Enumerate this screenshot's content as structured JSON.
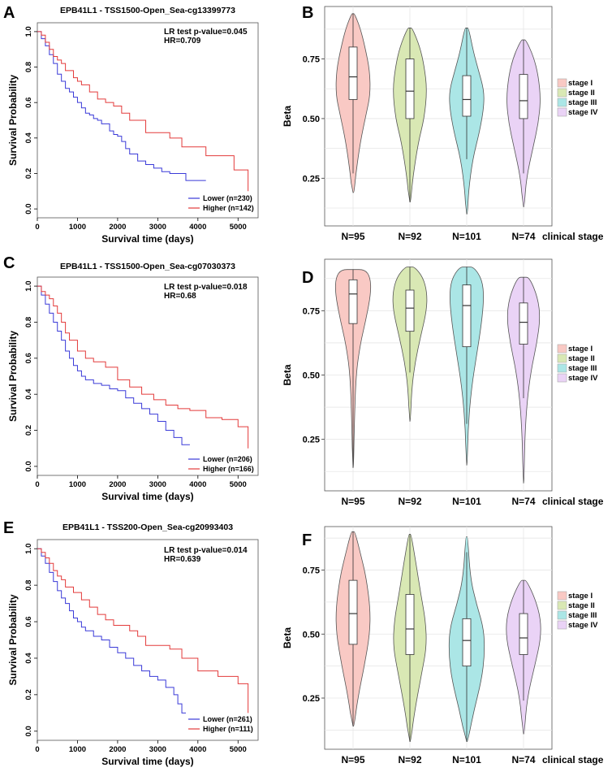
{
  "colors": {
    "lower": "#3a3ad8",
    "higher": "#e33b3b",
    "stage_fills": [
      "#f9c9c4",
      "#d9e8b4",
      "#abe6e6",
      "#ead3f6"
    ],
    "stage_strokes": [
      "#555555",
      "#555555",
      "#555555",
      "#555555"
    ],
    "grid": "#e6e6e6",
    "frame": "#555555"
  },
  "chart_data": [
    {
      "panel": "A",
      "type": "line",
      "title": "EPB41L1 - TSS1500-Open_Sea-cg13399773",
      "xlabel": "Survival time (days)",
      "ylabel": "Survival Probability",
      "xlim": [
        0,
        5500
      ],
      "ylim": [
        -0.05,
        1.05
      ],
      "xticks": [
        0,
        1000,
        2000,
        3000,
        4000,
        5000
      ],
      "yticks": [
        0.0,
        0.2,
        0.4,
        0.6,
        0.8,
        1.0
      ],
      "pvalue_text": "LR test p-value=0.045",
      "hr_text": "HR=0.709",
      "series": [
        {
          "name": "Lower (n=230)",
          "key": "lower",
          "x": [
            0,
            100,
            200,
            300,
            400,
            500,
            600,
            700,
            800,
            900,
            1000,
            1100,
            1200,
            1300,
            1400,
            1500,
            1600,
            1700,
            1800,
            1900,
            2000,
            2100,
            2200,
            2300,
            2500,
            2700,
            2900,
            3100,
            3300,
            3500,
            3700,
            4000,
            4200
          ],
          "y": [
            1.0,
            0.96,
            0.92,
            0.87,
            0.82,
            0.76,
            0.72,
            0.68,
            0.66,
            0.63,
            0.6,
            0.57,
            0.54,
            0.53,
            0.51,
            0.5,
            0.48,
            0.48,
            0.44,
            0.42,
            0.41,
            0.38,
            0.34,
            0.31,
            0.27,
            0.25,
            0.23,
            0.21,
            0.2,
            0.2,
            0.16,
            0.16,
            0.16
          ]
        },
        {
          "name": "Higher (n=142)",
          "key": "higher",
          "x": [
            0,
            100,
            200,
            300,
            400,
            500,
            600,
            700,
            900,
            1000,
            1100,
            1300,
            1500,
            1700,
            1900,
            2100,
            2300,
            2500,
            2700,
            3000,
            3300,
            3600,
            3900,
            4200,
            4600,
            4900,
            5200,
            5250
          ],
          "y": [
            1.0,
            0.98,
            0.94,
            0.9,
            0.86,
            0.84,
            0.82,
            0.78,
            0.74,
            0.72,
            0.7,
            0.66,
            0.62,
            0.6,
            0.58,
            0.54,
            0.5,
            0.5,
            0.43,
            0.43,
            0.4,
            0.35,
            0.35,
            0.3,
            0.3,
            0.22,
            0.22,
            0.1
          ]
        }
      ]
    },
    {
      "panel": "C",
      "type": "line",
      "title": "EPB41L1 - TSS1500-Open_Sea-cg07030373",
      "xlabel": "Survival time (days)",
      "ylabel": "Survival Probability",
      "xlim": [
        0,
        5500
      ],
      "ylim": [
        -0.05,
        1.05
      ],
      "xticks": [
        0,
        1000,
        2000,
        3000,
        4000,
        5000
      ],
      "yticks": [
        0.0,
        0.2,
        0.4,
        0.6,
        0.8,
        1.0
      ],
      "pvalue_text": "LR test p-value=0.018",
      "hr_text": "HR=0.68",
      "series": [
        {
          "name": "Lower (n=206)",
          "key": "lower",
          "x": [
            0,
            100,
            200,
            300,
            400,
            500,
            600,
            700,
            800,
            900,
            1000,
            1100,
            1200,
            1400,
            1600,
            1800,
            2000,
            2200,
            2400,
            2600,
            2800,
            3000,
            3200,
            3400,
            3600,
            3800
          ],
          "y": [
            1.0,
            0.95,
            0.9,
            0.85,
            0.8,
            0.75,
            0.7,
            0.64,
            0.6,
            0.56,
            0.53,
            0.5,
            0.48,
            0.46,
            0.45,
            0.43,
            0.42,
            0.38,
            0.35,
            0.32,
            0.29,
            0.25,
            0.2,
            0.16,
            0.12,
            0.12
          ]
        },
        {
          "name": "Higher (n=166)",
          "key": "higher",
          "x": [
            0,
            100,
            200,
            300,
            400,
            500,
            600,
            700,
            800,
            1000,
            1200,
            1400,
            1700,
            2000,
            2300,
            2600,
            2900,
            3200,
            3500,
            3800,
            4200,
            4600,
            5000,
            5200,
            5250
          ],
          "y": [
            1.0,
            0.97,
            0.95,
            0.93,
            0.89,
            0.85,
            0.8,
            0.74,
            0.7,
            0.64,
            0.6,
            0.58,
            0.55,
            0.48,
            0.44,
            0.4,
            0.37,
            0.34,
            0.32,
            0.31,
            0.27,
            0.26,
            0.22,
            0.22,
            0.1
          ]
        }
      ]
    },
    {
      "panel": "E",
      "type": "line",
      "title": "EPB41L1 - TSS200-Open_Sea-cg20993403",
      "xlabel": "Survival time (days)",
      "ylabel": "Survival Probability",
      "xlim": [
        0,
        5500
      ],
      "ylim": [
        -0.05,
        1.05
      ],
      "xticks": [
        0,
        1000,
        2000,
        3000,
        4000,
        5000
      ],
      "yticks": [
        0.0,
        0.2,
        0.4,
        0.6,
        0.8,
        1.0
      ],
      "pvalue_text": "LR test p-value=0.014",
      "hr_text": "HR=0.639",
      "series": [
        {
          "name": "Lower (n=261)",
          "key": "lower",
          "x": [
            0,
            100,
            200,
            300,
            400,
            500,
            600,
            700,
            800,
            900,
            1000,
            1100,
            1200,
            1400,
            1600,
            1800,
            2000,
            2200,
            2400,
            2600,
            2800,
            3000,
            3200,
            3400,
            3500,
            3600,
            3700
          ],
          "y": [
            1.0,
            0.96,
            0.92,
            0.87,
            0.82,
            0.77,
            0.73,
            0.7,
            0.66,
            0.62,
            0.6,
            0.57,
            0.55,
            0.52,
            0.5,
            0.46,
            0.43,
            0.4,
            0.36,
            0.33,
            0.3,
            0.28,
            0.24,
            0.2,
            0.15,
            0.1,
            0.1
          ]
        },
        {
          "name": "Higher (n=111)",
          "key": "higher",
          "x": [
            0,
            100,
            200,
            300,
            400,
            500,
            600,
            700,
            900,
            1100,
            1300,
            1500,
            1700,
            1900,
            2100,
            2300,
            2500,
            2700,
            3000,
            3300,
            3600,
            4000,
            4500,
            5000,
            5250
          ],
          "y": [
            1.0,
            0.98,
            0.95,
            0.92,
            0.88,
            0.85,
            0.83,
            0.79,
            0.76,
            0.72,
            0.68,
            0.64,
            0.61,
            0.58,
            0.58,
            0.55,
            0.52,
            0.47,
            0.47,
            0.45,
            0.4,
            0.33,
            0.3,
            0.26,
            0.1
          ]
        }
      ]
    },
    {
      "panel": "B",
      "type": "violin",
      "ylabel": "Beta",
      "ylim": [
        0.05,
        0.97
      ],
      "yticks": [
        0.25,
        0.5,
        0.75
      ],
      "categories": [
        "N=95",
        "N=92",
        "N=101",
        "N=74"
      ],
      "xlabel": "clinical stage",
      "legend": [
        "stage I",
        "stage II",
        "stage III",
        "stage IV"
      ],
      "groups": [
        {
          "min": 0.19,
          "max": 0.94,
          "q1": 0.58,
          "median": 0.675,
          "q3": 0.8,
          "wlo": 0.27,
          "whi": 0.94,
          "width": 0.42,
          "profile": [
            [
              0.19,
              0.04
            ],
            [
              0.27,
              0.12
            ],
            [
              0.4,
              0.3
            ],
            [
              0.52,
              0.55
            ],
            [
              0.6,
              0.72
            ],
            [
              0.7,
              0.7
            ],
            [
              0.8,
              0.5
            ],
            [
              0.88,
              0.3
            ],
            [
              0.94,
              0.06
            ]
          ]
        },
        {
          "min": 0.15,
          "max": 0.88,
          "q1": 0.5,
          "median": 0.615,
          "q3": 0.75,
          "wlo": 0.15,
          "whi": 0.88,
          "width": 0.42,
          "profile": [
            [
              0.15,
              0.03
            ],
            [
              0.25,
              0.12
            ],
            [
              0.4,
              0.35
            ],
            [
              0.5,
              0.6
            ],
            [
              0.62,
              0.72
            ],
            [
              0.72,
              0.6
            ],
            [
              0.8,
              0.42
            ],
            [
              0.88,
              0.1
            ]
          ]
        },
        {
          "min": 0.1,
          "max": 0.88,
          "q1": 0.51,
          "median": 0.58,
          "q3": 0.68,
          "wlo": 0.33,
          "whi": 0.88,
          "width": 0.42,
          "profile": [
            [
              0.1,
              0.03
            ],
            [
              0.2,
              0.08
            ],
            [
              0.33,
              0.25
            ],
            [
              0.45,
              0.55
            ],
            [
              0.55,
              0.72
            ],
            [
              0.62,
              0.72
            ],
            [
              0.7,
              0.5
            ],
            [
              0.78,
              0.28
            ],
            [
              0.88,
              0.08
            ]
          ]
        },
        {
          "min": 0.13,
          "max": 0.83,
          "q1": 0.5,
          "median": 0.575,
          "q3": 0.685,
          "wlo": 0.27,
          "whi": 0.83,
          "width": 0.42,
          "profile": [
            [
              0.13,
              0.03
            ],
            [
              0.25,
              0.12
            ],
            [
              0.38,
              0.4
            ],
            [
              0.48,
              0.62
            ],
            [
              0.58,
              0.72
            ],
            [
              0.68,
              0.62
            ],
            [
              0.76,
              0.42
            ],
            [
              0.83,
              0.1
            ]
          ]
        }
      ]
    },
    {
      "panel": "D",
      "type": "violin",
      "ylabel": "Beta",
      "ylim": [
        0.05,
        0.95
      ],
      "yticks": [
        0.25,
        0.5,
        0.75
      ],
      "categories": [
        "N=95",
        "N=92",
        "N=101",
        "N=74"
      ],
      "xlabel": "clinical stage",
      "legend": [
        "stage I",
        "stage II",
        "stage III",
        "stage IV"
      ],
      "groups": [
        {
          "min": 0.14,
          "max": 0.91,
          "q1": 0.7,
          "median": 0.815,
          "q3": 0.87,
          "wlo": 0.14,
          "whi": 0.91,
          "width": 0.42,
          "profile": [
            [
              0.14,
              0.02
            ],
            [
              0.3,
              0.05
            ],
            [
              0.5,
              0.12
            ],
            [
              0.62,
              0.3
            ],
            [
              0.72,
              0.55
            ],
            [
              0.82,
              0.75
            ],
            [
              0.88,
              0.72
            ],
            [
              0.91,
              0.5
            ]
          ]
        },
        {
          "min": 0.32,
          "max": 0.92,
          "q1": 0.67,
          "median": 0.76,
          "q3": 0.83,
          "wlo": 0.51,
          "whi": 0.92,
          "width": 0.42,
          "profile": [
            [
              0.32,
              0.02
            ],
            [
              0.45,
              0.08
            ],
            [
              0.55,
              0.22
            ],
            [
              0.65,
              0.45
            ],
            [
              0.75,
              0.7
            ],
            [
              0.82,
              0.72
            ],
            [
              0.88,
              0.55
            ],
            [
              0.92,
              0.2
            ]
          ]
        },
        {
          "min": 0.15,
          "max": 0.92,
          "q1": 0.61,
          "median": 0.77,
          "q3": 0.85,
          "wlo": 0.31,
          "whi": 0.92,
          "width": 0.42,
          "profile": [
            [
              0.15,
              0.02
            ],
            [
              0.3,
              0.06
            ],
            [
              0.45,
              0.2
            ],
            [
              0.58,
              0.42
            ],
            [
              0.7,
              0.62
            ],
            [
              0.8,
              0.72
            ],
            [
              0.87,
              0.65
            ],
            [
              0.92,
              0.3
            ]
          ]
        },
        {
          "min": 0.08,
          "max": 0.88,
          "q1": 0.62,
          "median": 0.705,
          "q3": 0.78,
          "wlo": 0.41,
          "whi": 0.88,
          "width": 0.42,
          "profile": [
            [
              0.08,
              0.02
            ],
            [
              0.25,
              0.05
            ],
            [
              0.4,
              0.15
            ],
            [
              0.52,
              0.32
            ],
            [
              0.62,
              0.55
            ],
            [
              0.72,
              0.7
            ],
            [
              0.8,
              0.6
            ],
            [
              0.88,
              0.25
            ]
          ]
        }
      ]
    },
    {
      "panel": "F",
      "type": "violin",
      "ylabel": "Beta",
      "ylim": [
        0.05,
        0.92
      ],
      "yticks": [
        0.25,
        0.5,
        0.75
      ],
      "categories": [
        "N=95",
        "N=92",
        "N=101",
        "N=74"
      ],
      "xlabel": "clinical stage",
      "legend": [
        "stage I",
        "stage II",
        "stage III",
        "stage IV"
      ],
      "groups": [
        {
          "min": 0.14,
          "max": 0.9,
          "q1": 0.46,
          "median": 0.58,
          "q3": 0.71,
          "wlo": 0.14,
          "whi": 0.9,
          "width": 0.42,
          "profile": [
            [
              0.14,
              0.04
            ],
            [
              0.25,
              0.2
            ],
            [
              0.38,
              0.48
            ],
            [
              0.5,
              0.7
            ],
            [
              0.6,
              0.72
            ],
            [
              0.72,
              0.55
            ],
            [
              0.8,
              0.35
            ],
            [
              0.9,
              0.08
            ]
          ]
        },
        {
          "min": 0.08,
          "max": 0.89,
          "q1": 0.42,
          "median": 0.52,
          "q3": 0.655,
          "wlo": 0.08,
          "whi": 0.89,
          "width": 0.42,
          "profile": [
            [
              0.08,
              0.03
            ],
            [
              0.2,
              0.2
            ],
            [
              0.35,
              0.5
            ],
            [
              0.45,
              0.7
            ],
            [
              0.55,
              0.66
            ],
            [
              0.66,
              0.45
            ],
            [
              0.78,
              0.25
            ],
            [
              0.89,
              0.05
            ]
          ]
        },
        {
          "min": 0.08,
          "max": 0.88,
          "q1": 0.375,
          "median": 0.475,
          "q3": 0.56,
          "wlo": 0.08,
          "whi": 0.82,
          "width": 0.42,
          "profile": [
            [
              0.08,
              0.04
            ],
            [
              0.2,
              0.3
            ],
            [
              0.32,
              0.62
            ],
            [
              0.42,
              0.75
            ],
            [
              0.52,
              0.72
            ],
            [
              0.62,
              0.4
            ],
            [
              0.72,
              0.15
            ],
            [
              0.88,
              0.04
            ]
          ]
        },
        {
          "min": 0.11,
          "max": 0.71,
          "q1": 0.42,
          "median": 0.485,
          "q3": 0.58,
          "wlo": 0.24,
          "whi": 0.71,
          "width": 0.42,
          "profile": [
            [
              0.11,
              0.03
            ],
            [
              0.25,
              0.15
            ],
            [
              0.38,
              0.48
            ],
            [
              0.48,
              0.72
            ],
            [
              0.56,
              0.72
            ],
            [
              0.64,
              0.48
            ],
            [
              0.71,
              0.12
            ]
          ]
        }
      ]
    }
  ]
}
